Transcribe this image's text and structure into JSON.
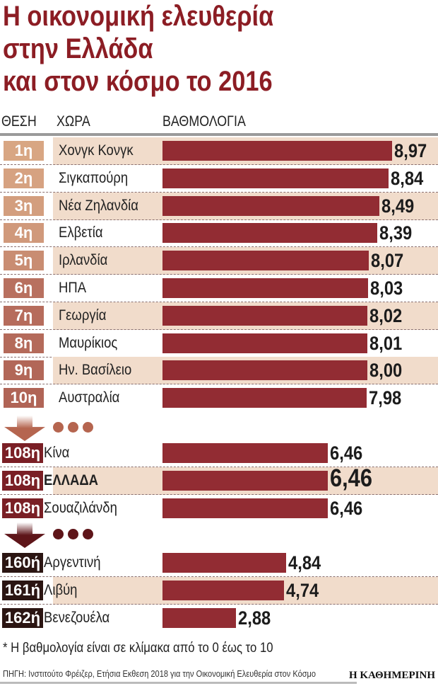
{
  "chart_data": {
    "type": "bar",
    "orientation": "horizontal",
    "title_lines": [
      "Η οικονομική ελευθερία",
      "στην Ελλάδα",
      "και στον κόσμο το 2016"
    ],
    "columns": {
      "rank": "ΘΕΣΗ",
      "country": "ΧΩΡΑ",
      "score": "ΒΑΘΜΟΛΟΓΙΑ"
    },
    "xlim": [
      0,
      10
    ],
    "bar_color": "#922c33",
    "groups": [
      {
        "badge_colors": [
          "#d8a683",
          "#d6a281",
          "#d39e7e",
          "#d0997b",
          "#c98d72",
          "#b8705f",
          "#b66c5c",
          "#b46a5a",
          "#b26758",
          "#b06456"
        ],
        "arrow_color": "#b5654f",
        "rows": [
          {
            "rank": "1η",
            "country": "Χονγκ Κονγκ",
            "value": 8.97,
            "label": "8,97",
            "highlight": true
          },
          {
            "rank": "2η",
            "country": "Σιγκαπούρη",
            "value": 8.84,
            "label": "8,84",
            "highlight": false
          },
          {
            "rank": "3η",
            "country": "Νέα Ζηλανδία",
            "value": 8.49,
            "label": "8,49",
            "highlight": true
          },
          {
            "rank": "4η",
            "country": "Ελβετία",
            "value": 8.39,
            "label": "8,39",
            "highlight": false
          },
          {
            "rank": "5η",
            "country": "Ιρλανδία",
            "value": 8.07,
            "label": "8,07",
            "highlight": true
          },
          {
            "rank": "6η",
            "country": "ΗΠΑ",
            "value": 8.03,
            "label": "8,03",
            "highlight": false
          },
          {
            "rank": "7η",
            "country": "Γεωργία",
            "value": 8.02,
            "label": "8,02",
            "highlight": true
          },
          {
            "rank": "8η",
            "country": "Μαυρίκιος",
            "value": 8.01,
            "label": "8,01",
            "highlight": false
          },
          {
            "rank": "9η",
            "country": "Ην. Βασίλειο",
            "value": 8.0,
            "label": "8,00",
            "highlight": true
          },
          {
            "rank": "10η",
            "country": "Αυστραλία",
            "value": 7.98,
            "label": "7,98",
            "highlight": false
          }
        ]
      },
      {
        "badge_colors": [
          "#7a1f25",
          "#7a1f25",
          "#7a1f25"
        ],
        "arrow_color": "#5e1519",
        "rows": [
          {
            "rank": "108η",
            "country": "Κίνα",
            "value": 6.46,
            "label": "6,46",
            "highlight": false
          },
          {
            "rank": "108η",
            "country": "ΕΛΛΑΔΑ",
            "value": 6.46,
            "label": "6,46",
            "highlight": true,
            "emphasis": true
          },
          {
            "rank": "108η",
            "country": "Σουαζιλάνδη",
            "value": 6.46,
            "label": "6,46",
            "highlight": false
          }
        ]
      },
      {
        "badge_colors": [
          "#2b1512",
          "#2b1512",
          "#2b1512"
        ],
        "rows": [
          {
            "rank": "160ή",
            "country": "Αργεντινή",
            "value": 4.84,
            "label": "4,84",
            "highlight": false
          },
          {
            "rank": "161ή",
            "country": "Λιβύη",
            "value": 4.74,
            "label": "4,74",
            "highlight": true
          },
          {
            "rank": "162ή",
            "country": "Βενεζουέλα",
            "value": 2.88,
            "label": "2,88",
            "highlight": false
          }
        ]
      }
    ],
    "footnote": "* Η βαθμολογία είναι σε κλίμακα από το 0 έως το 10",
    "source": "ΠΗΓΗ: Ινστιτούτο Φρέιζερ, Ετήσια Εκθεση 2018 για την Οικονομική Ελευθερία στον Κόσμο",
    "publisher": "Η ΚΑΘΗΜΕΡΙΝΗ"
  }
}
